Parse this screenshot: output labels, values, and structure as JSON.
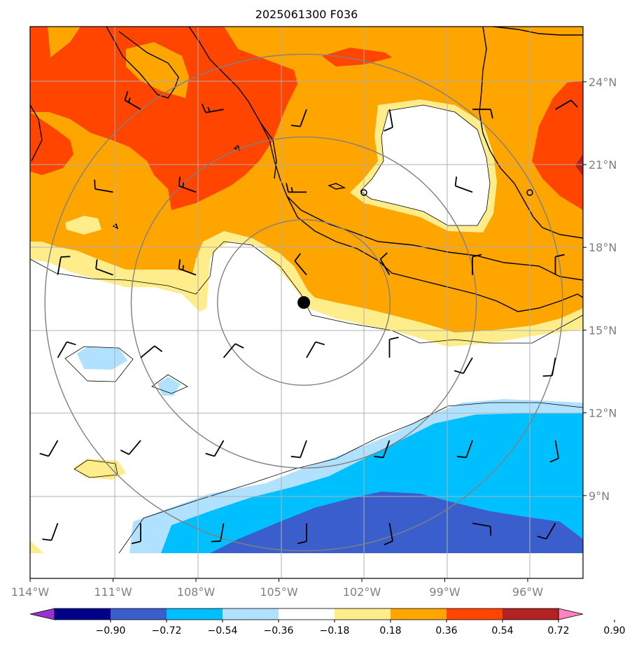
{
  "chart_data": {
    "type": "heatmap",
    "title": "2025061300 F036",
    "x_ticks": [
      "114°W",
      "111°W",
      "108°W",
      "105°W",
      "102°W",
      "99°W",
      "96°W"
    ],
    "x_tick_values": [
      -114,
      -111,
      -108,
      -105,
      -102,
      -99,
      -96
    ],
    "y_ticks": [
      "24°N",
      "21°N",
      "18°N",
      "15°N",
      "12°N",
      "9°N"
    ],
    "y_tick_values": [
      24,
      21,
      18,
      15,
      12,
      9
    ],
    "xlim": [
      -114,
      -94
    ],
    "ylim": [
      6,
      26
    ],
    "grid": true,
    "center_marker": {
      "lon": -104.1,
      "lat": 16.0
    },
    "range_rings_deg": [
      3,
      6,
      9
    ],
    "colorbar": {
      "orientation": "horizontal",
      "placement": "bottom",
      "extend": "both",
      "tick_labels": [
        "−0.90",
        "−0.72",
        "−0.54",
        "−0.36",
        "−0.18",
        "0.18",
        "0.36",
        "0.54",
        "0.72",
        "0.90"
      ],
      "levels": [
        -0.9,
        -0.72,
        -0.54,
        -0.36,
        -0.18,
        0.18,
        0.36,
        0.54,
        0.72,
        0.9
      ],
      "colors": [
        "#9932cc",
        "#00008b",
        "#3a5fcd",
        "#00bfff",
        "#b0e2ff",
        "#ffffff",
        "#ffec8b",
        "#ffa500",
        "#ff4500",
        "#b22222",
        "#ff83c1"
      ]
    },
    "wind_barbs": [
      {
        "lon": -113,
        "lat": 17,
        "dir": 10,
        "spd": 10
      },
      {
        "lon": -110,
        "lat": 23,
        "dir": 300,
        "spd": 15
      },
      {
        "lon": -107,
        "lat": 23,
        "dir": 260,
        "spd": 15
      },
      {
        "lon": -104,
        "lat": 23,
        "dir": 200,
        "spd": 10
      },
      {
        "lon": -101,
        "lat": 23,
        "dir": 170,
        "spd": 10
      },
      {
        "lon": -98,
        "lat": 23,
        "dir": 90,
        "spd": 10
      },
      {
        "lon": -95,
        "lat": 23,
        "dir": 60,
        "spd": 10
      },
      {
        "lon": -111,
        "lat": 20,
        "dir": 280,
        "spd": 10
      },
      {
        "lon": -108,
        "lat": 20,
        "dir": 290,
        "spd": 15
      },
      {
        "lon": -104,
        "lat": 20,
        "dir": 270,
        "spd": 15
      },
      {
        "lon": -98,
        "lat": 20,
        "dir": 290,
        "spd": 10
      },
      {
        "lon": -111,
        "lat": 17,
        "dir": 290,
        "spd": 10
      },
      {
        "lon": -108,
        "lat": 17,
        "dir": 290,
        "spd": 15
      },
      {
        "lon": -104,
        "lat": 17,
        "dir": 320,
        "spd": 10
      },
      {
        "lon": -101,
        "lat": 17,
        "dir": 330,
        "spd": 10
      },
      {
        "lon": -98,
        "lat": 17,
        "dir": 0,
        "spd": 10
      },
      {
        "lon": -95,
        "lat": 17,
        "dir": 0,
        "spd": 10
      },
      {
        "lon": -113,
        "lat": 14,
        "dir": 30,
        "spd": 10
      },
      {
        "lon": -110,
        "lat": 14,
        "dir": 50,
        "spd": 10
      },
      {
        "lon": -107,
        "lat": 14,
        "dir": 40,
        "spd": 10
      },
      {
        "lon": -104,
        "lat": 14,
        "dir": 30,
        "spd": 10
      },
      {
        "lon": -101,
        "lat": 14,
        "dir": 0,
        "spd": 10
      },
      {
        "lon": -98,
        "lat": 14,
        "dir": 210,
        "spd": 10
      },
      {
        "lon": -95,
        "lat": 14,
        "dir": 190,
        "spd": 10
      },
      {
        "lon": -113,
        "lat": 11,
        "dir": 210,
        "spd": 10
      },
      {
        "lon": -110,
        "lat": 11,
        "dir": 220,
        "spd": 10
      },
      {
        "lon": -107,
        "lat": 11,
        "dir": 210,
        "spd": 10
      },
      {
        "lon": -104,
        "lat": 11,
        "dir": 200,
        "spd": 10
      },
      {
        "lon": -101,
        "lat": 11,
        "dir": 200,
        "spd": 10
      },
      {
        "lon": -98,
        "lat": 11,
        "dir": 200,
        "spd": 10
      },
      {
        "lon": -95,
        "lat": 11,
        "dir": 170,
        "spd": 10
      },
      {
        "lon": -113,
        "lat": 8,
        "dir": 200,
        "spd": 10
      },
      {
        "lon": -110,
        "lat": 8,
        "dir": 180,
        "spd": 10
      },
      {
        "lon": -107,
        "lat": 8,
        "dir": 190,
        "spd": 10
      },
      {
        "lon": -104,
        "lat": 8,
        "dir": 180,
        "spd": 10
      },
      {
        "lon": -101,
        "lat": 8,
        "dir": 170,
        "spd": 10
      },
      {
        "lon": -98,
        "lat": 8,
        "dir": 100,
        "spd": 10
      },
      {
        "lon": -95,
        "lat": 8,
        "dir": 210,
        "spd": 10
      }
    ]
  }
}
